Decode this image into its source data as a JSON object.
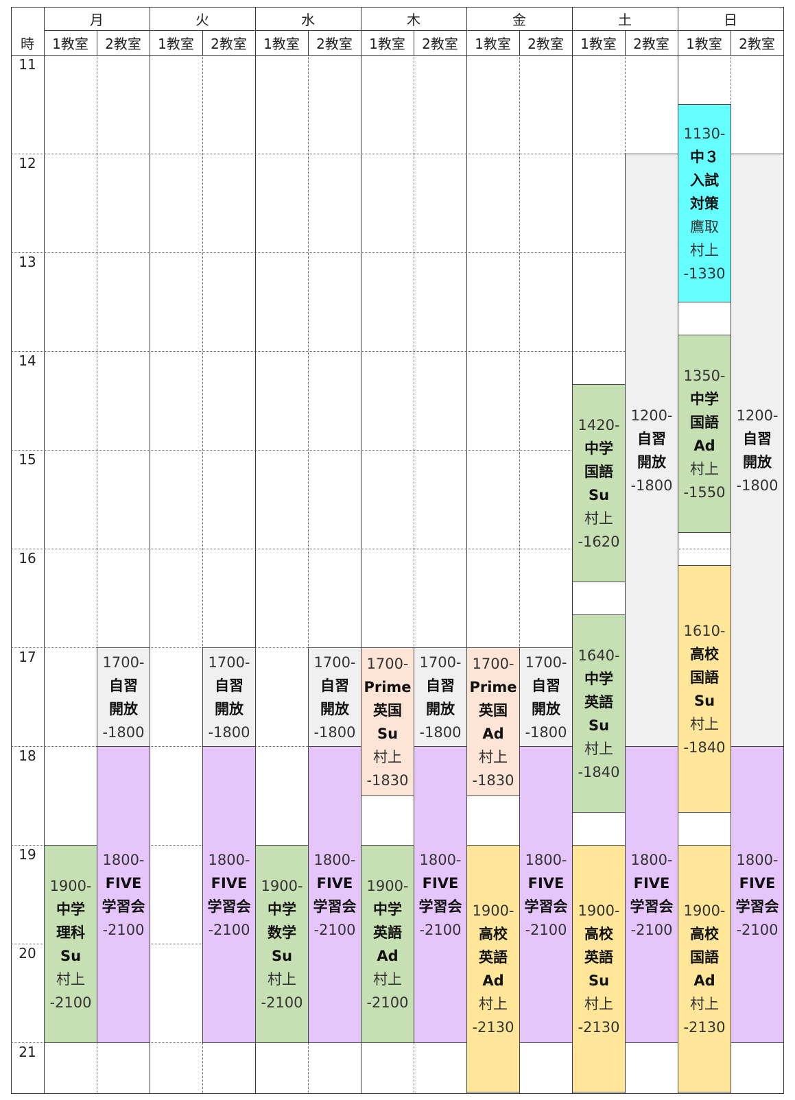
{
  "header": {
    "time_label": "時",
    "days": [
      "月",
      "火",
      "水",
      "木",
      "金",
      "土",
      "日"
    ],
    "rooms": [
      "1教室",
      "2教室"
    ]
  },
  "hours": [
    "11",
    "12",
    "13",
    "14",
    "15",
    "16",
    "17",
    "18",
    "19",
    "20",
    "21"
  ],
  "colors": {
    "self_study": "#f0f0f0",
    "five": "#e6c6fa",
    "green": "#c6e0b4",
    "salmon": "#fce4d6",
    "yellow": "#ffe699",
    "cyan": "#66ffff"
  },
  "blocks": [
    {
      "id": "mon-r1-science",
      "day": "月",
      "room": "1教室",
      "color": "green",
      "start": 1900,
      "end": 2100,
      "lines": [
        {
          "text": "1900-",
          "s": "t"
        },
        {
          "text": "中学",
          "s": "n"
        },
        {
          "text": "理科",
          "s": "n"
        },
        {
          "text": "Su",
          "s": "n"
        },
        {
          "text": "村上",
          "s": "p"
        },
        {
          "text": "-2100",
          "s": "t"
        }
      ]
    },
    {
      "id": "mon-r2-jishu",
      "day": "月",
      "room": "2教室",
      "color": "self_study",
      "start": 1700,
      "end": 1800,
      "lines": [
        {
          "text": "1700-",
          "s": "t"
        },
        {
          "text": "自習",
          "s": "n"
        },
        {
          "text": "開放",
          "s": "n"
        },
        {
          "text": "-1800",
          "s": "t"
        }
      ]
    },
    {
      "id": "mon-r2-five",
      "day": "月",
      "room": "2教室",
      "color": "five",
      "start": 1800,
      "end": 2100,
      "lines": [
        {
          "text": "1800-",
          "s": "t"
        },
        {
          "text": "FIVE",
          "s": "n"
        },
        {
          "text": "学習会",
          "s": "n"
        },
        {
          "text": "-2100",
          "s": "t"
        }
      ]
    },
    {
      "id": "tue-r2-jishu",
      "day": "火",
      "room": "2教室",
      "color": "self_study",
      "start": 1700,
      "end": 1800,
      "lines": [
        {
          "text": "1700-",
          "s": "t"
        },
        {
          "text": "自習",
          "s": "n"
        },
        {
          "text": "開放",
          "s": "n"
        },
        {
          "text": "-1800",
          "s": "t"
        }
      ]
    },
    {
      "id": "tue-r2-five",
      "day": "火",
      "room": "2教室",
      "color": "five",
      "start": 1800,
      "end": 2100,
      "lines": [
        {
          "text": "1800-",
          "s": "t"
        },
        {
          "text": "FIVE",
          "s": "n"
        },
        {
          "text": "学習会",
          "s": "n"
        },
        {
          "text": "-2100",
          "s": "t"
        }
      ]
    },
    {
      "id": "wed-r1-math",
      "day": "水",
      "room": "1教室",
      "color": "green",
      "start": 1900,
      "end": 2100,
      "lines": [
        {
          "text": "1900-",
          "s": "t"
        },
        {
          "text": "中学",
          "s": "n"
        },
        {
          "text": "数学",
          "s": "n"
        },
        {
          "text": "Su",
          "s": "n"
        },
        {
          "text": "村上",
          "s": "p"
        },
        {
          "text": "-2100",
          "s": "t"
        }
      ]
    },
    {
      "id": "wed-r2-jishu",
      "day": "水",
      "room": "2教室",
      "color": "self_study",
      "start": 1700,
      "end": 1800,
      "lines": [
        {
          "text": "1700-",
          "s": "t"
        },
        {
          "text": "自習",
          "s": "n"
        },
        {
          "text": "開放",
          "s": "n"
        },
        {
          "text": "-1800",
          "s": "t"
        }
      ]
    },
    {
      "id": "wed-r2-five",
      "day": "水",
      "room": "2教室",
      "color": "five",
      "start": 1800,
      "end": 2100,
      "lines": [
        {
          "text": "1800-",
          "s": "t"
        },
        {
          "text": "FIVE",
          "s": "n"
        },
        {
          "text": "学習会",
          "s": "n"
        },
        {
          "text": "-2100",
          "s": "t"
        }
      ]
    },
    {
      "id": "thu-r1-prime",
      "day": "木",
      "room": "1教室",
      "color": "salmon",
      "start": 1700,
      "end": 1830,
      "lines": [
        {
          "text": "1700-",
          "s": "t"
        },
        {
          "text": "Prime",
          "s": "n"
        },
        {
          "text": "英国",
          "s": "n"
        },
        {
          "text": "Su",
          "s": "n"
        },
        {
          "text": "村上",
          "s": "p"
        },
        {
          "text": "-1830",
          "s": "t"
        }
      ]
    },
    {
      "id": "thu-r1-english",
      "day": "木",
      "room": "1教室",
      "color": "green",
      "start": 1900,
      "end": 2100,
      "lines": [
        {
          "text": "1900-",
          "s": "t"
        },
        {
          "text": "中学",
          "s": "n"
        },
        {
          "text": "英語",
          "s": "n"
        },
        {
          "text": "Ad",
          "s": "n"
        },
        {
          "text": "村上",
          "s": "p"
        },
        {
          "text": "-2100",
          "s": "t"
        }
      ]
    },
    {
      "id": "thu-r2-jishu",
      "day": "木",
      "room": "2教室",
      "color": "self_study",
      "start": 1700,
      "end": 1800,
      "lines": [
        {
          "text": "1700-",
          "s": "t"
        },
        {
          "text": "自習",
          "s": "n"
        },
        {
          "text": "開放",
          "s": "n"
        },
        {
          "text": "-1800",
          "s": "t"
        }
      ]
    },
    {
      "id": "thu-r2-five",
      "day": "木",
      "room": "2教室",
      "color": "five",
      "start": 1800,
      "end": 2100,
      "lines": [
        {
          "text": "1800-",
          "s": "t"
        },
        {
          "text": "FIVE",
          "s": "n"
        },
        {
          "text": "学習会",
          "s": "n"
        },
        {
          "text": "-2100",
          "s": "t"
        }
      ]
    },
    {
      "id": "fri-r1-prime",
      "day": "金",
      "room": "1教室",
      "color": "salmon",
      "start": 1700,
      "end": 1830,
      "lines": [
        {
          "text": "1700-",
          "s": "t"
        },
        {
          "text": "Prime",
          "s": "n"
        },
        {
          "text": "英国",
          "s": "n"
        },
        {
          "text": "Ad",
          "s": "n"
        },
        {
          "text": "村上",
          "s": "p"
        },
        {
          "text": "-1830",
          "s": "t"
        }
      ]
    },
    {
      "id": "fri-r1-hs-english",
      "day": "金",
      "room": "1教室",
      "color": "yellow",
      "start": 1900,
      "end": 2130,
      "lines": [
        {
          "text": "1900-",
          "s": "t"
        },
        {
          "text": "高校",
          "s": "n"
        },
        {
          "text": "英語",
          "s": "n"
        },
        {
          "text": "Ad",
          "s": "n"
        },
        {
          "text": "村上",
          "s": "p"
        },
        {
          "text": "-2130",
          "s": "t"
        }
      ]
    },
    {
      "id": "fri-r2-jishu",
      "day": "金",
      "room": "2教室",
      "color": "self_study",
      "start": 1700,
      "end": 1800,
      "lines": [
        {
          "text": "1700-",
          "s": "t"
        },
        {
          "text": "自習",
          "s": "n"
        },
        {
          "text": "開放",
          "s": "n"
        },
        {
          "text": "-1800",
          "s": "t"
        }
      ]
    },
    {
      "id": "fri-r2-five",
      "day": "金",
      "room": "2教室",
      "color": "five",
      "start": 1800,
      "end": 2100,
      "lines": [
        {
          "text": "1800-",
          "s": "t"
        },
        {
          "text": "FIVE",
          "s": "n"
        },
        {
          "text": "学習会",
          "s": "n"
        },
        {
          "text": "-2100",
          "s": "t"
        }
      ]
    },
    {
      "id": "sat-r1-kokugo",
      "day": "土",
      "room": "1教室",
      "color": "green",
      "start": 1420,
      "end": 1620,
      "lines": [
        {
          "text": "1420-",
          "s": "t"
        },
        {
          "text": "中学",
          "s": "n"
        },
        {
          "text": "国語",
          "s": "n"
        },
        {
          "text": "Su",
          "s": "n"
        },
        {
          "text": "村上",
          "s": "p"
        },
        {
          "text": "-1620",
          "s": "t"
        }
      ]
    },
    {
      "id": "sat-r1-english",
      "day": "土",
      "room": "1教室",
      "color": "green",
      "start": 1640,
      "end": 1840,
      "lines": [
        {
          "text": "1640-",
          "s": "t"
        },
        {
          "text": "中学",
          "s": "n"
        },
        {
          "text": "英語",
          "s": "n"
        },
        {
          "text": "Su",
          "s": "n"
        },
        {
          "text": "村上",
          "s": "p"
        },
        {
          "text": "-1840",
          "s": "t"
        }
      ]
    },
    {
      "id": "sat-r1-hs-english",
      "day": "土",
      "room": "1教室",
      "color": "yellow",
      "start": 1900,
      "end": 2130,
      "lines": [
        {
          "text": "1900-",
          "s": "t"
        },
        {
          "text": "高校",
          "s": "n"
        },
        {
          "text": "英語",
          "s": "n"
        },
        {
          "text": "Su",
          "s": "n"
        },
        {
          "text": "村上",
          "s": "p"
        },
        {
          "text": "-2130",
          "s": "t"
        }
      ]
    },
    {
      "id": "sat-r2-jishu",
      "day": "土",
      "room": "2教室",
      "color": "self_study",
      "start": 1200,
      "end": 1800,
      "lines": [
        {
          "text": "1200-",
          "s": "t"
        },
        {
          "text": "自習",
          "s": "n"
        },
        {
          "text": "開放",
          "s": "n"
        },
        {
          "text": "-1800",
          "s": "t"
        }
      ]
    },
    {
      "id": "sat-r2-five",
      "day": "土",
      "room": "2教室",
      "color": "five",
      "start": 1800,
      "end": 2100,
      "lines": [
        {
          "text": "1800-",
          "s": "t"
        },
        {
          "text": "FIVE",
          "s": "n"
        },
        {
          "text": "学習会",
          "s": "n"
        },
        {
          "text": "-2100",
          "s": "t"
        }
      ]
    },
    {
      "id": "sun-r1-entrance",
      "day": "日",
      "room": "1教室",
      "color": "cyan",
      "start": 1130,
      "end": 1330,
      "lines": [
        {
          "text": "1130-",
          "s": "t"
        },
        {
          "text": "中３",
          "s": "n"
        },
        {
          "text": "入試",
          "s": "n"
        },
        {
          "text": "対策",
          "s": "n"
        },
        {
          "text": "鷹取",
          "s": "p"
        },
        {
          "text": "村上",
          "s": "p"
        },
        {
          "text": "-1330",
          "s": "t"
        }
      ]
    },
    {
      "id": "sun-r1-kokugo",
      "day": "日",
      "room": "1教室",
      "color": "green",
      "start": 1350,
      "end": 1550,
      "lines": [
        {
          "text": "1350-",
          "s": "t"
        },
        {
          "text": "中学",
          "s": "n"
        },
        {
          "text": "国語",
          "s": "n"
        },
        {
          "text": "Ad",
          "s": "n"
        },
        {
          "text": "村上",
          "s": "p"
        },
        {
          "text": "-1550",
          "s": "t"
        }
      ]
    },
    {
      "id": "sun-r1-hs-kokugo-su",
      "day": "日",
      "room": "1教室",
      "color": "yellow",
      "start": 1610,
      "end": 1840,
      "lines": [
        {
          "text": "1610-",
          "s": "t"
        },
        {
          "text": "高校",
          "s": "n"
        },
        {
          "text": "国語",
          "s": "n"
        },
        {
          "text": "Su",
          "s": "n"
        },
        {
          "text": "村上",
          "s": "p"
        },
        {
          "text": "-1840",
          "s": "t"
        }
      ]
    },
    {
      "id": "sun-r1-hs-kokugo-ad",
      "day": "日",
      "room": "1教室",
      "color": "yellow",
      "start": 1900,
      "end": 2130,
      "lines": [
        {
          "text": "1900-",
          "s": "t"
        },
        {
          "text": "高校",
          "s": "n"
        },
        {
          "text": "国語",
          "s": "n"
        },
        {
          "text": "Ad",
          "s": "n"
        },
        {
          "text": "村上",
          "s": "p"
        },
        {
          "text": "-2130",
          "s": "t"
        }
      ]
    },
    {
      "id": "sun-r2-jishu",
      "day": "日",
      "room": "2教室",
      "color": "self_study",
      "start": 1200,
      "end": 1800,
      "lines": [
        {
          "text": "1200-",
          "s": "t"
        },
        {
          "text": "自習",
          "s": "n"
        },
        {
          "text": "開放",
          "s": "n"
        },
        {
          "text": "-1800",
          "s": "t"
        }
      ]
    },
    {
      "id": "sun-r2-five",
      "day": "日",
      "room": "2教室",
      "color": "five",
      "start": 1800,
      "end": 2100,
      "lines": [
        {
          "text": "1800-",
          "s": "t"
        },
        {
          "text": "FIVE",
          "s": "n"
        },
        {
          "text": "学習会",
          "s": "n"
        },
        {
          "text": "-2100",
          "s": "t"
        }
      ]
    }
  ]
}
